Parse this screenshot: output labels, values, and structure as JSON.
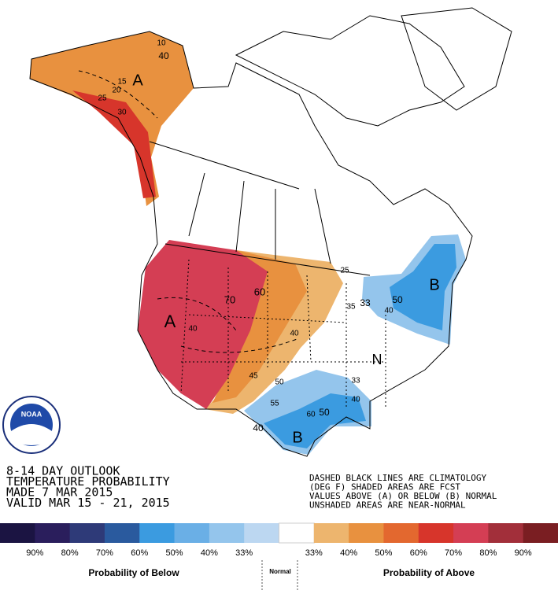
{
  "outlook_lines": [
    "8-14 DAY OUTLOOK",
    "TEMPERATURE PROBABILITY",
    "MADE  7 MAR 2015",
    "VALID  MAR 15 - 21, 2015"
  ],
  "notes": [
    "DASHED BLACK LINES ARE CLIMATOLOGY",
    "(DEG F) SHADED AREAS ARE FCST",
    "VALUES ABOVE (A) OR BELOW (B) NORMAL",
    "UNSHADED AREAS ARE NEAR-NORMAL"
  ],
  "logo": "NOAA",
  "map_labels": [
    "A",
    "10",
    "40",
    "15",
    "20",
    "25",
    "30",
    "A",
    "70",
    "60",
    "40",
    "25",
    "40",
    "45",
    "50",
    "55",
    "60",
    "50",
    "40",
    "40",
    "B",
    "N",
    "33",
    "35",
    "33",
    "50",
    "40",
    "B"
  ],
  "legend": {
    "swatches": [
      "#1b1442",
      "#2a1e5c",
      "#2e3a78",
      "#2a5a9e",
      "#3b9be0",
      "#6aafe6",
      "#94c5ec",
      "#bcd7f1",
      "#ffffff",
      "#edb56e",
      "#e8913f",
      "#e3682f",
      "#d7352b",
      "#d43e54",
      "#a22f3a",
      "#7a1e22"
    ],
    "below_ticks": [
      "90%",
      "80%",
      "70%",
      "60%",
      "50%",
      "40%",
      "33%"
    ],
    "above_ticks": [
      "33%",
      "40%",
      "50%",
      "60%",
      "70%",
      "80%",
      "90%"
    ],
    "below_caption": "Probability of Below",
    "normal_caption": "Normal",
    "above_caption": "Probability of Above"
  }
}
